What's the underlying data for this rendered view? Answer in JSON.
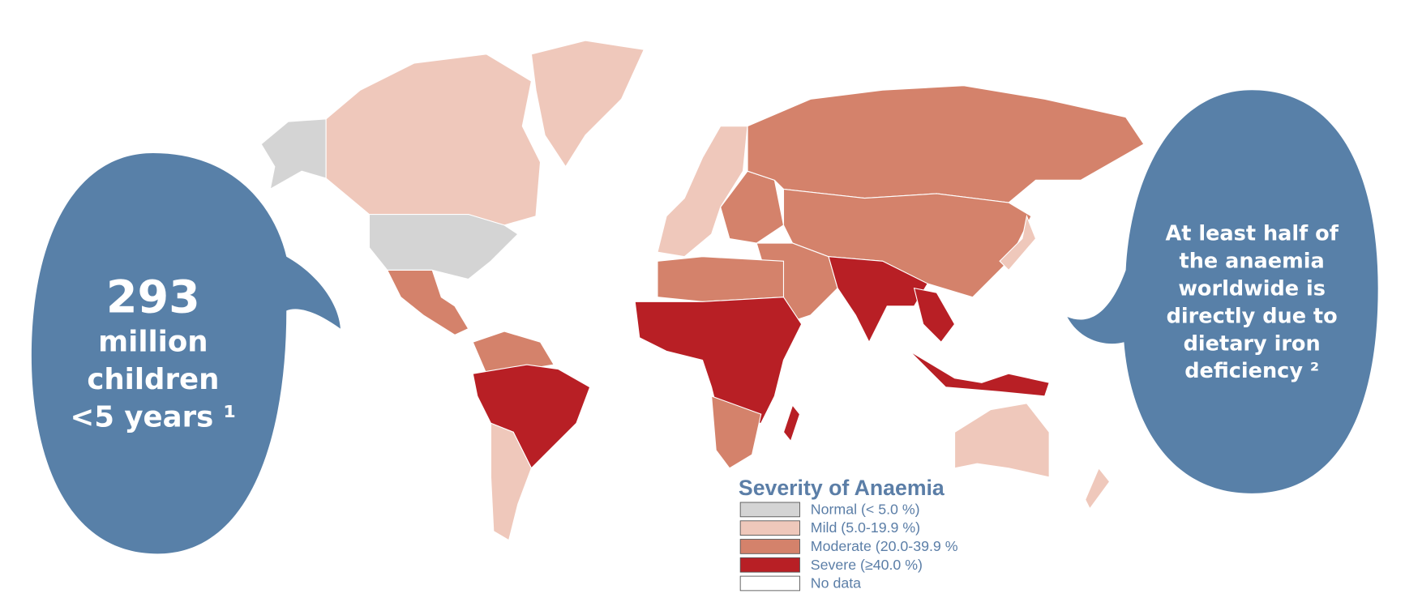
{
  "left_bubble": {
    "number": "293",
    "lines": [
      "million",
      "children",
      "<5 years ¹"
    ]
  },
  "right_bubble": {
    "lines": [
      "At least half of",
      "the anaemia",
      "worldwide is",
      "directly due to",
      "dietary iron",
      "deficiency ²"
    ]
  },
  "legend": {
    "title": "Severity of Anaemia",
    "items": [
      {
        "label": "Normal (< 5.0 %)",
        "color": "#d4d4d4"
      },
      {
        "label": "Mild (5.0-19.9 %)",
        "color": "#efc8bb"
      },
      {
        "label": "Moderate (20.0-39.9 %",
        "color": "#d4826b"
      },
      {
        "label": "Severe (≥40.0 %)",
        "color": "#b81f25"
      },
      {
        "label": "No data",
        "color": "#ffffff"
      }
    ]
  }
}
